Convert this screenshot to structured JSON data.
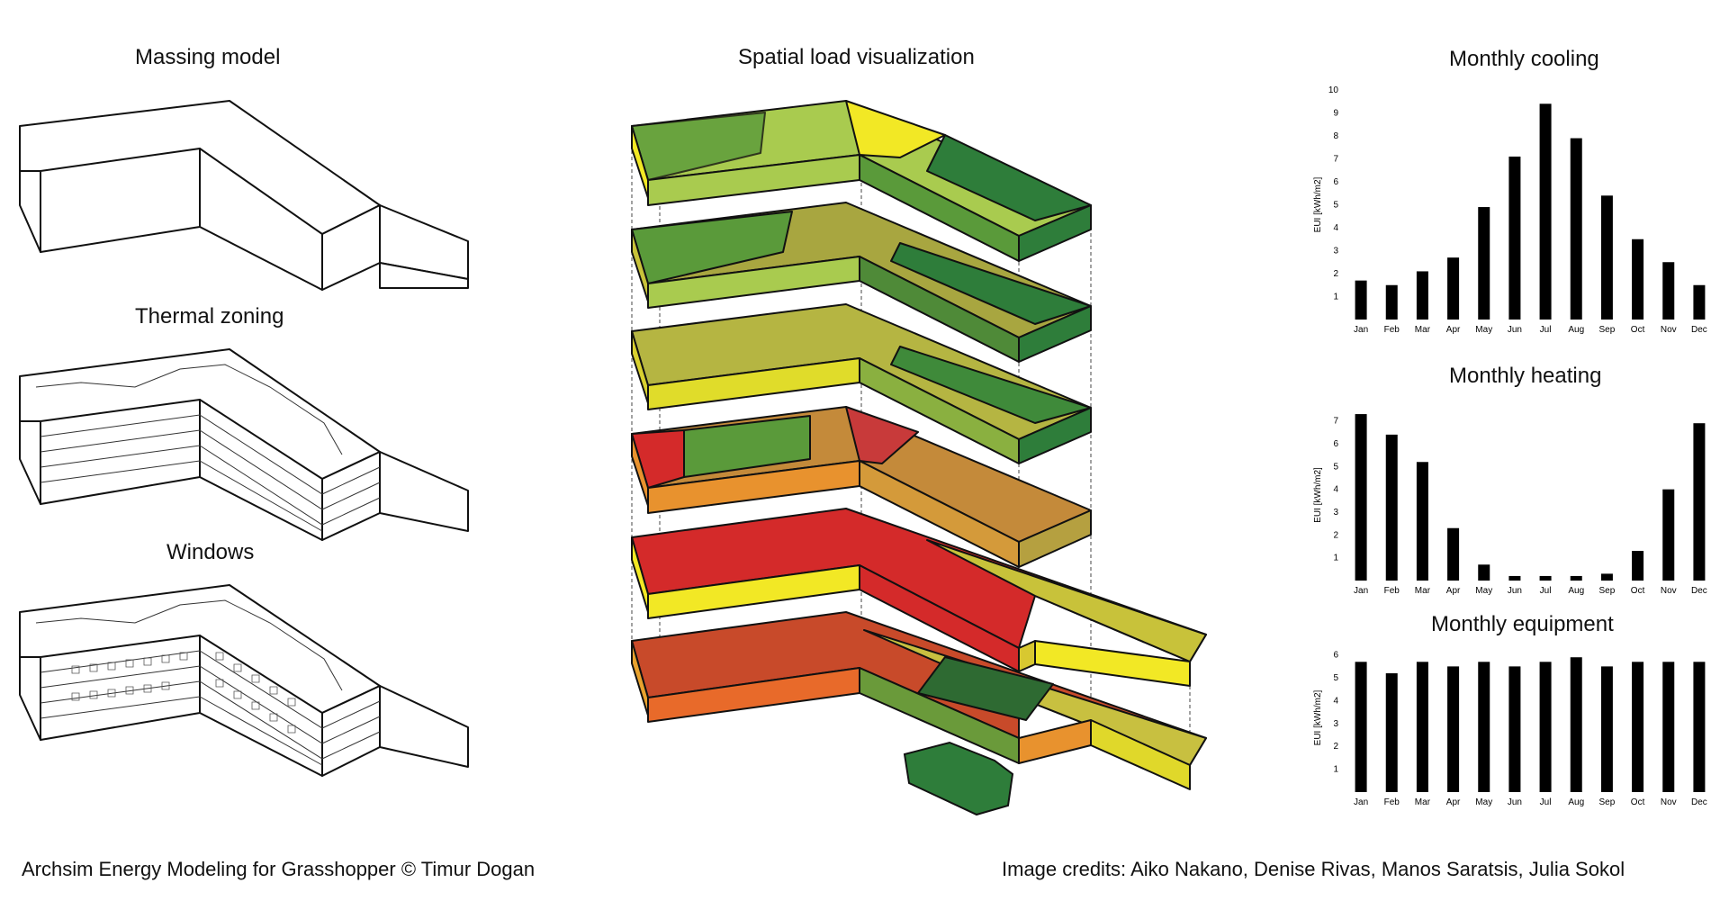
{
  "left_panel": {
    "massing_title": "Massing model",
    "thermal_title": "Thermal zoning",
    "windows_title": "Windows"
  },
  "center_panel": {
    "title": "Spatial load visualization",
    "palette": {
      "dark_green": "#2e7d3a",
      "green": "#5a9a3a",
      "light_green": "#a9cb4f",
      "yellow": "#f2e825",
      "olive": "#a8a640",
      "orange": "#e8922e",
      "dark_orange": "#d4602a",
      "red": "#d42a2a"
    }
  },
  "charts": [
    {
      "title": "Monthly cooling",
      "ylabel": "EUI [kWh/m2]",
      "yticks": [
        "1",
        "2",
        "3",
        "4",
        "5",
        "6",
        "7",
        "8",
        "9",
        "10"
      ]
    },
    {
      "title": "Monthly heating",
      "ylabel": "EUI [kWh/m2]",
      "yticks": [
        "1",
        "2",
        "3",
        "4",
        "5",
        "6",
        "7"
      ]
    },
    {
      "title": "Monthly equipment",
      "ylabel": "EUI [kWh/m2]",
      "yticks": [
        "1",
        "2",
        "3",
        "4",
        "5",
        "6"
      ]
    }
  ],
  "chart_data": [
    {
      "type": "bar",
      "title": "Monthly cooling",
      "ylabel": "EUI [kWh/m2]",
      "categories": [
        "Jan",
        "Feb",
        "Mar",
        "Apr",
        "May",
        "Jun",
        "Jul",
        "Aug",
        "Sep",
        "Oct",
        "Nov",
        "Dec"
      ],
      "values": [
        1.7,
        1.5,
        2.1,
        2.7,
        4.9,
        7.1,
        9.4,
        7.9,
        5.4,
        3.5,
        2.5,
        1.5
      ],
      "ylim": [
        0,
        10
      ],
      "grid": false
    },
    {
      "type": "bar",
      "title": "Monthly heating",
      "ylabel": "EUI [kWh/m2]",
      "categories": [
        "Jan",
        "Feb",
        "Mar",
        "Apr",
        "May",
        "Jun",
        "Jul",
        "Aug",
        "Sep",
        "Oct",
        "Nov",
        "Dec"
      ],
      "values": [
        7.3,
        6.4,
        5.2,
        2.3,
        0.7,
        0.2,
        0.2,
        0.2,
        0.3,
        1.3,
        4.0,
        6.9
      ],
      "ylim": [
        0,
        7.5
      ],
      "grid": false
    },
    {
      "type": "bar",
      "title": "Monthly equipment",
      "ylabel": "EUI [kWh/m2]",
      "categories": [
        "Jan",
        "Feb",
        "Mar",
        "Apr",
        "May",
        "Jun",
        "Jul",
        "Aug",
        "Sep",
        "Oct",
        "Nov",
        "Dec"
      ],
      "values": [
        5.7,
        5.2,
        5.7,
        5.5,
        5.7,
        5.5,
        5.7,
        5.9,
        5.5,
        5.7,
        5.7,
        5.7
      ],
      "ylim": [
        0,
        6.5
      ],
      "grid": false
    }
  ],
  "footer": {
    "left": "Archsim Energy Modeling for Grasshopper © Timur Dogan",
    "right": "Image credits: Aiko Nakano, Denise Rivas, Manos Saratsis, Julia Sokol"
  }
}
